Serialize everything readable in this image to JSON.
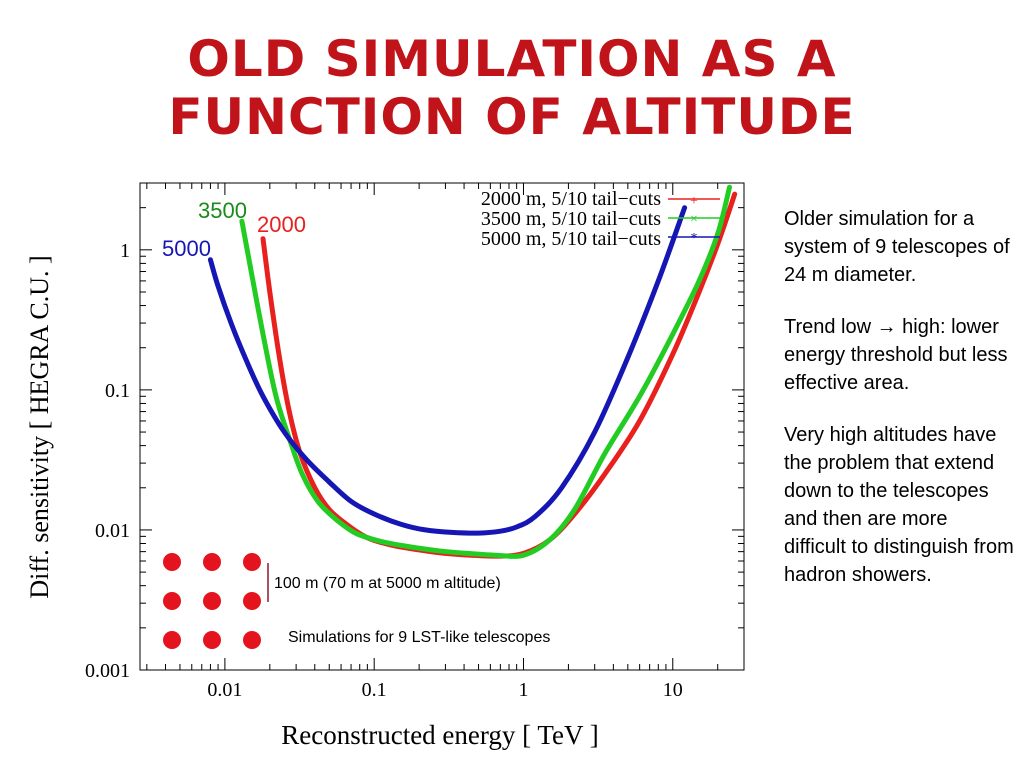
{
  "slide": {
    "title_line1": "OLD SIMULATION AS A",
    "title_line2": "FUNCTION OF ALTITUDE",
    "notes": [
      "Older simulation for a system of 9 telescopes of 24 m diameter.",
      "Trend low → high: lower energy threshold but less effective area.",
      "Very high altitudes have the problem that extend down to the telescopes and then are more difficult to distinguish from hadron showers."
    ]
  },
  "colors": {
    "title": "#c0131a",
    "red": "#e8201e",
    "green": "#22cc22",
    "blue": "#1616b4",
    "dots": "#e3141d"
  },
  "chart_data": {
    "type": "line",
    "xscale": "log",
    "yscale": "log",
    "xlim": [
      0.0027,
      30
    ],
    "ylim": [
      0.001,
      3
    ],
    "xlabel": "Reconstructed energy [ TeV ]",
    "ylabel": "Diff. sensitivity [ HEGRA C.U. ]",
    "xticks": [
      {
        "v": 0.01,
        "label": "0.01"
      },
      {
        "v": 0.1,
        "label": "0.1"
      },
      {
        "v": 1,
        "label": "1"
      },
      {
        "v": 10,
        "label": "10"
      }
    ],
    "yticks": [
      {
        "v": 0.001,
        "label": "0.001"
      },
      {
        "v": 0.01,
        "label": "0.01"
      },
      {
        "v": 0.1,
        "label": "0.1"
      },
      {
        "v": 1,
        "label": "1"
      }
    ],
    "legend": [
      "2000 m, 5/10 tail−cuts",
      "3500 m, 5/10 tail−cuts",
      "5000 m, 5/10 tail−cuts"
    ],
    "series": [
      {
        "name": "2000",
        "color_key": "red",
        "x": [
          0.018,
          0.02,
          0.023,
          0.027,
          0.032,
          0.04,
          0.05,
          0.065,
          0.09,
          0.13,
          0.2,
          0.3,
          0.45,
          0.7,
          1.0,
          1.5,
          2.2,
          3.5,
          6,
          10,
          15,
          20,
          26
        ],
        "y": [
          1.2,
          0.5,
          0.18,
          0.07,
          0.035,
          0.02,
          0.014,
          0.011,
          0.0088,
          0.0078,
          0.0072,
          0.0068,
          0.0066,
          0.0065,
          0.0068,
          0.0085,
          0.013,
          0.025,
          0.06,
          0.18,
          0.5,
          1.1,
          2.5
        ]
      },
      {
        "name": "3500",
        "color_key": "green",
        "x": [
          0.013,
          0.015,
          0.018,
          0.022,
          0.027,
          0.033,
          0.042,
          0.055,
          0.075,
          0.11,
          0.17,
          0.27,
          0.42,
          0.65,
          1.0,
          1.5,
          2.2,
          3.5,
          6,
          10,
          15,
          20,
          24
        ],
        "y": [
          1.6,
          0.7,
          0.25,
          0.09,
          0.045,
          0.025,
          0.016,
          0.012,
          0.0095,
          0.0083,
          0.0076,
          0.0071,
          0.0068,
          0.0066,
          0.0066,
          0.0085,
          0.014,
          0.035,
          0.09,
          0.25,
          0.6,
          1.3,
          2.8
        ]
      },
      {
        "name": "5000",
        "color_key": "blue",
        "x": [
          0.008,
          0.009,
          0.011,
          0.014,
          0.018,
          0.025,
          0.035,
          0.05,
          0.07,
          0.1,
          0.15,
          0.22,
          0.33,
          0.5,
          0.7,
          0.9,
          1.2,
          1.8,
          3,
          5,
          8,
          12
        ],
        "y": [
          0.85,
          0.55,
          0.3,
          0.16,
          0.09,
          0.05,
          0.032,
          0.022,
          0.016,
          0.013,
          0.011,
          0.01,
          0.0096,
          0.0095,
          0.0098,
          0.0105,
          0.0125,
          0.02,
          0.05,
          0.17,
          0.6,
          2.0
        ]
      }
    ],
    "curve_labels": [
      "5000",
      "3500",
      "2000"
    ],
    "inset": {
      "scale_label": "100 m  (70 m at 5000 m altitude)",
      "caption": "Simulations for 9 LST-like telescopes"
    }
  }
}
